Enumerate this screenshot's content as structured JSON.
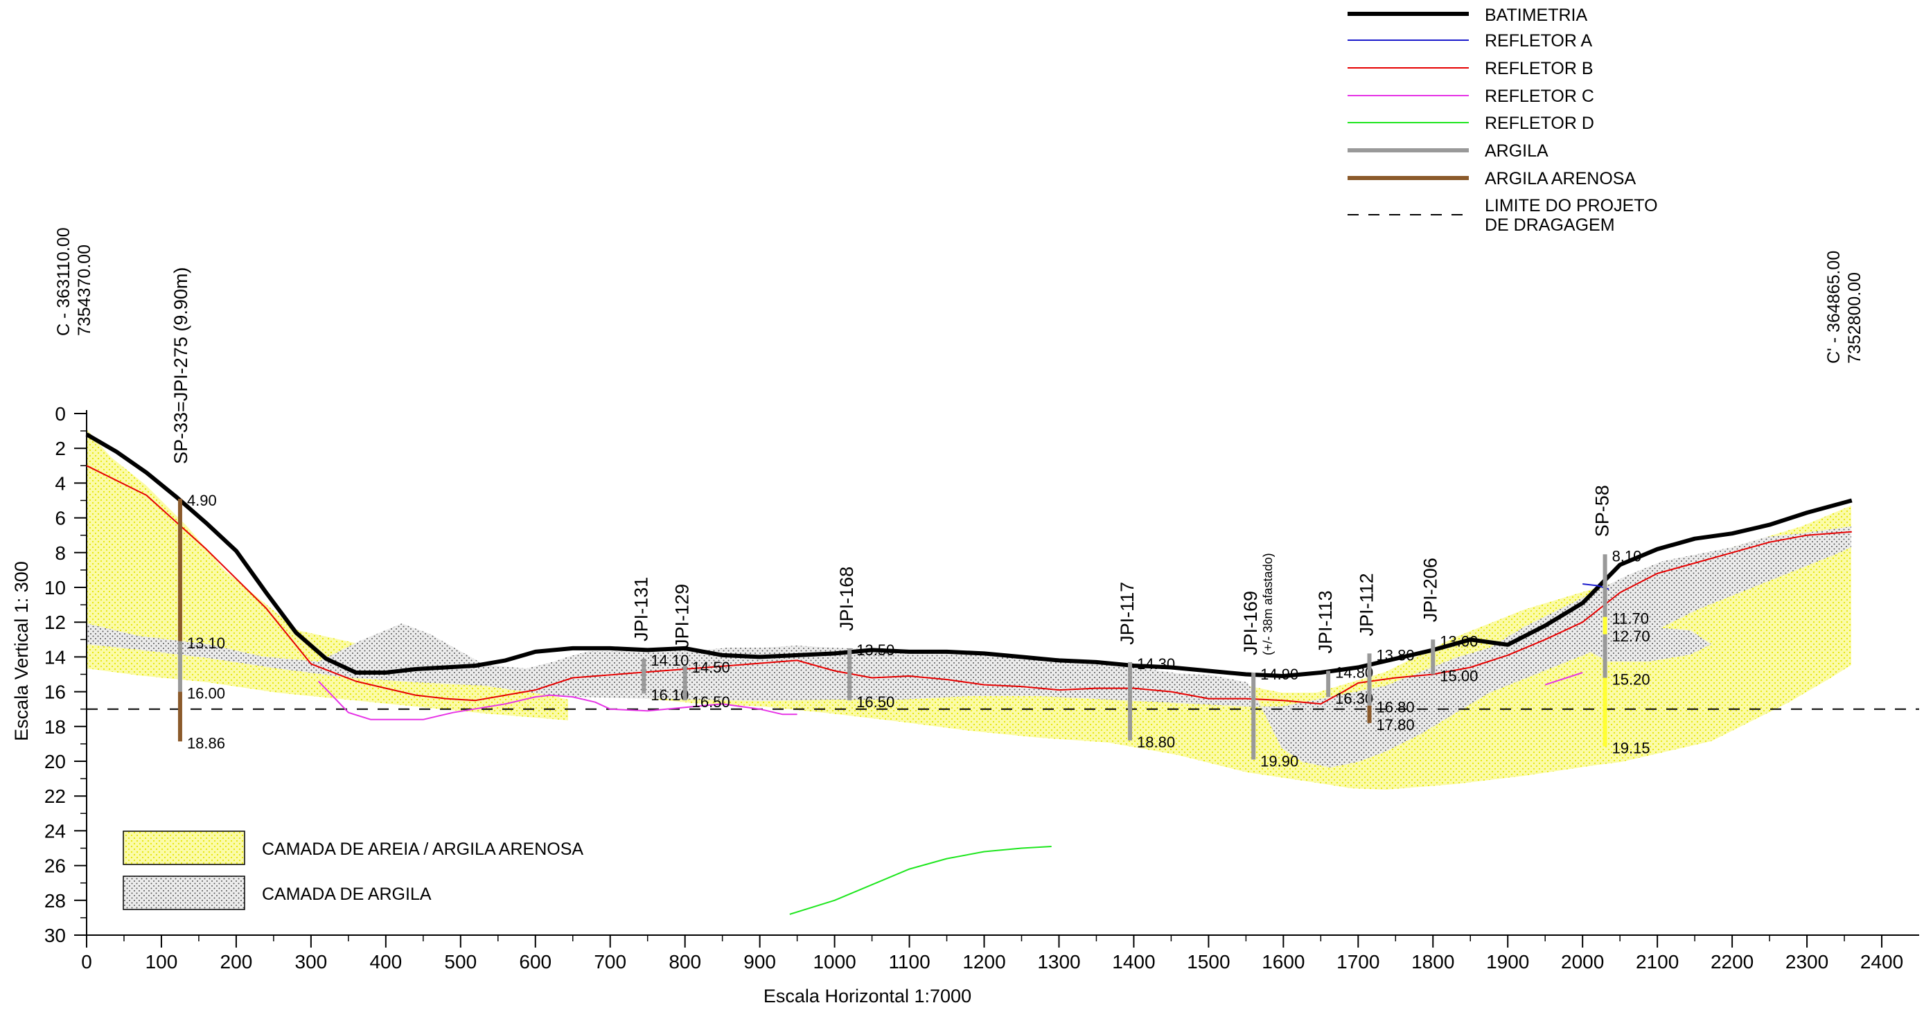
{
  "chart_data": {
    "type": "line",
    "xlabel": "Escala Horizontal 1:7000",
    "ylabel": "Escala Vertical 1: 300",
    "xlim": [
      0,
      2450
    ],
    "ylim": [
      30,
      0
    ],
    "x_ticks": [
      "0",
      "100",
      "200",
      "300",
      "400",
      "500",
      "600",
      "700",
      "800",
      "900",
      "1000",
      "1100",
      "1200",
      "1300",
      "1400",
      "1500",
      "1600",
      "1700",
      "1800",
      "1900",
      "2000",
      "2100",
      "2200",
      "2300",
      "2400"
    ],
    "y_ticks": [
      "0",
      "2",
      "4",
      "6",
      "8",
      "10",
      "12",
      "14",
      "16",
      "18",
      "20",
      "22",
      "24",
      "26",
      "28",
      "30"
    ],
    "endpoints": {
      "left_line1": "C - 363110.00",
      "left_line2": "7354370.00",
      "right_line1": "C' - 364865.00",
      "right_line2": "7352800.00"
    },
    "legend_labels": {
      "batimetria": "BATIMETRIA",
      "refletor_a": "REFLETOR A",
      "refletor_b": "REFLETOR B",
      "refletor_c": "REFLETOR C",
      "refletor_d": "REFLETOR D",
      "argila": "ARGILA",
      "argila_arenosa": "ARGILA ARENOSA",
      "limite_line1": "LIMITE DO PROJETO",
      "limite_line2": "DE DRAGAGEM"
    },
    "layer_legend": {
      "areia": "CAMADA DE AREIA / ARGILA ARENOSA",
      "argila": "CAMADA DE ARGILA"
    },
    "colors": {
      "batimetria": "#000000",
      "refletor_a": "#1a1acc",
      "refletor_b": "#e60000",
      "refletor_c": "#e633e6",
      "refletor_d": "#1ee61e",
      "argila": "#999999",
      "argila_arenosa": "#8b5a2b",
      "areia_fill": "#fbfba8",
      "areia_dot": "#e6e600",
      "argila_fill": "#e0e0e0"
    },
    "dredging_limit_depth": 17,
    "series": [
      {
        "name": "BATIMETRIA",
        "x": [
          0,
          40,
          80,
          120,
          160,
          200,
          240,
          280,
          320,
          360,
          400,
          440,
          480,
          520,
          560,
          600,
          650,
          700,
          750,
          800,
          850,
          900,
          950,
          1000,
          1050,
          1100,
          1150,
          1200,
          1250,
          1300,
          1350,
          1400,
          1450,
          1500,
          1550,
          1600,
          1650,
          1700,
          1750,
          1800,
          1850,
          1900,
          1950,
          2000,
          2050,
          2100,
          2150,
          2200,
          2250,
          2300,
          2360
        ],
        "y": [
          1.2,
          2.2,
          3.4,
          4.8,
          6.3,
          7.9,
          10.3,
          12.6,
          14.1,
          14.9,
          14.9,
          14.7,
          14.6,
          14.5,
          14.2,
          13.7,
          13.5,
          13.5,
          13.6,
          13.5,
          13.9,
          14.0,
          13.9,
          13.8,
          13.6,
          13.7,
          13.7,
          13.8,
          14.0,
          14.2,
          14.3,
          14.5,
          14.6,
          14.8,
          15.0,
          15.1,
          14.9,
          14.6,
          14.1,
          13.6,
          13.0,
          13.3,
          12.2,
          10.9,
          8.7,
          7.8,
          7.2,
          6.9,
          6.4,
          5.7,
          5.0
        ]
      },
      {
        "name": "REFLETOR A",
        "x": [
          2000,
          2020,
          2035
        ],
        "y": [
          9.8,
          9.9,
          10.1
        ]
      },
      {
        "name": "REFLETOR B",
        "x": [
          0,
          80,
          160,
          240,
          300,
          360,
          400,
          440,
          480,
          520,
          560,
          600,
          650,
          950,
          1000,
          1050,
          1100,
          1150,
          1200,
          1250,
          1300,
          1350,
          1400,
          1450,
          1500,
          1550,
          1600,
          1650,
          1680,
          1700,
          1750,
          1800,
          1850,
          1900,
          1950,
          2000,
          2050,
          2100,
          2150,
          2200,
          2250,
          2300,
          2360
        ],
        "y": [
          3.0,
          4.7,
          7.8,
          11.2,
          14.4,
          15.4,
          15.8,
          16.2,
          16.4,
          16.5,
          16.2,
          15.9,
          15.2,
          14.2,
          14.8,
          15.2,
          15.1,
          15.3,
          15.6,
          15.7,
          15.9,
          15.8,
          15.8,
          16.0,
          16.4,
          16.4,
          16.5,
          16.7,
          16.0,
          15.5,
          15.2,
          15.0,
          14.6,
          13.9,
          13.0,
          12.0,
          10.3,
          9.2,
          8.6,
          8.0,
          7.4,
          7.0,
          6.8
        ]
      },
      {
        "name": "REFLETOR C",
        "x": [
          310,
          330,
          350,
          380,
          450,
          490,
          560,
          600,
          620,
          650,
          680,
          700,
          750,
          800,
          850,
          900,
          930,
          950,
          1950,
          2000
        ],
        "y": [
          15.4,
          16.3,
          17.2,
          17.6,
          17.6,
          17.2,
          16.7,
          16.3,
          16.2,
          16.3,
          16.6,
          17.0,
          17.1,
          16.9,
          16.7,
          17.0,
          17.3,
          17.3,
          15.6,
          14.9
        ]
      },
      {
        "name": "REFLETOR D",
        "x": [
          940,
          1000,
          1050,
          1100,
          1150,
          1200,
          1250,
          1290
        ],
        "y": [
          28.8,
          28.0,
          27.1,
          26.2,
          25.6,
          25.2,
          25.0,
          24.9
        ]
      }
    ],
    "boreholes": [
      {
        "name": "SP-33=JPI-275 (9.90m)",
        "x": 125,
        "top": 4.9,
        "bottom": 18.86,
        "labels": [
          "4.90",
          "13.10",
          "16.00",
          "18.86"
        ]
      },
      {
        "name": "JPI-131",
        "x": 745,
        "top": 14.1,
        "bottom": 16.1,
        "labels": [
          "14.10",
          "16.10"
        ]
      },
      {
        "name": "JPI-129",
        "x": 800,
        "top": 14.5,
        "bottom": 16.5,
        "labels": [
          "14.50",
          "16.50"
        ]
      },
      {
        "name": "JPI-168",
        "x": 1020,
        "top": 13.5,
        "bottom": 16.5,
        "labels": [
          "13.50",
          "16.50"
        ]
      },
      {
        "name": "JPI-117",
        "x": 1395,
        "top": 14.3,
        "bottom": 18.8,
        "labels": [
          "14.30",
          "18.80"
        ]
      },
      {
        "name": "JPI-169",
        "sub": "(+/- 38m afastado)",
        "x": 1560,
        "top": 14.9,
        "bottom": 19.9,
        "labels": [
          "14.90",
          "19.90"
        ]
      },
      {
        "name": "JPI-113",
        "x": 1660,
        "top": 14.8,
        "bottom": 16.3,
        "labels": [
          "14.80",
          "16.30"
        ]
      },
      {
        "name": "JPI-112",
        "x": 1715,
        "top": 13.8,
        "bottom": 17.8,
        "labels": [
          "13.80",
          "16.80",
          "17.80"
        ]
      },
      {
        "name": "JPI-206",
        "x": 1800,
        "top": 13.0,
        "bottom": 15.0,
        "labels": [
          "13.00",
          "15.00"
        ]
      },
      {
        "name": "SP-58",
        "x": 2030,
        "top": 8.1,
        "bottom": 19.15,
        "labels": [
          "8.10",
          "11.70",
          "12.70",
          "15.20",
          "19.15"
        ]
      }
    ]
  }
}
